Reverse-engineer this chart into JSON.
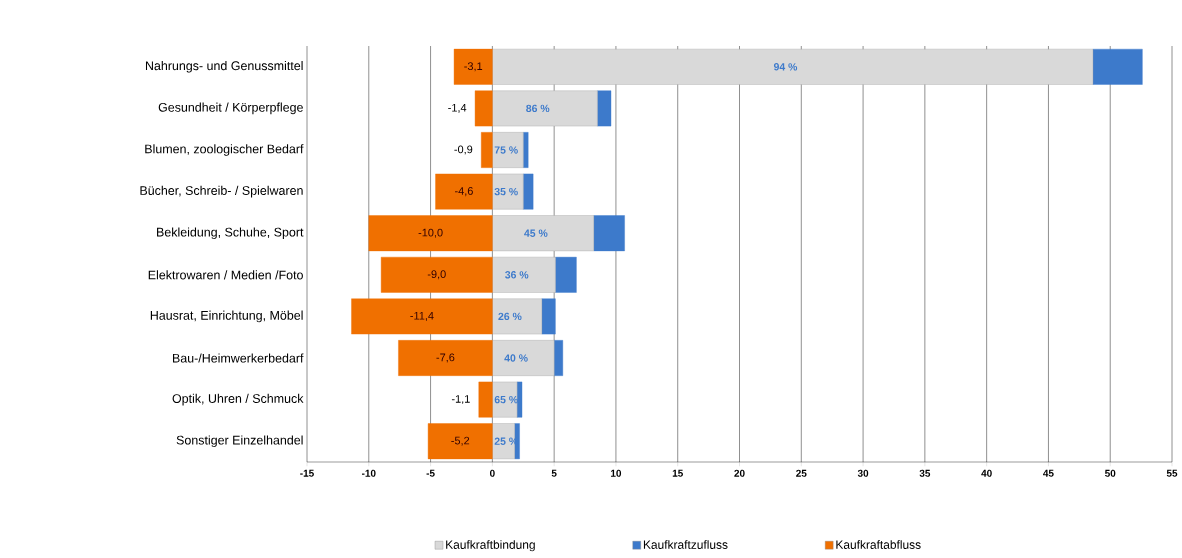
{
  "chart_data": {
    "type": "bar",
    "orientation": "horizontal",
    "stacked": true,
    "categories": [
      "Nahrungs- und Genussmittel",
      "Gesundheit / Körperpflege",
      "Blumen, zoologischer Bedarf",
      "Bücher, Schreib- / Spielwaren",
      "Bekleidung, Schuhe, Sport",
      "Elektrowaren / Medien /Foto",
      "Hausrat, Einrichtung, Möbel",
      "Bau-/Heimwerkerbedarf",
      "Optik, Uhren / Schmuck",
      "Sonstiger Einzelhandel"
    ],
    "series": [
      {
        "name": "Kaufkraftbindung",
        "color": "#d9d9d9",
        "values": [
          48.6,
          8.5,
          2.5,
          2.5,
          8.2,
          5.1,
          4.0,
          5.0,
          2.0,
          1.8
        ]
      },
      {
        "name": "Kaufkraftzufluss",
        "color": "#3d7acb",
        "values": [
          4.0,
          1.1,
          0.4,
          0.8,
          2.5,
          1.7,
          1.1,
          0.7,
          0.4,
          0.4
        ]
      },
      {
        "name": "Kaufkraftabfluss",
        "color": "#f07000",
        "values": [
          -3.1,
          -1.4,
          -0.9,
          -4.6,
          -10.0,
          -9.0,
          -11.4,
          -7.6,
          -1.1,
          -5.2
        ],
        "value_labels": [
          "-3,1",
          "-1,4",
          "-0,9",
          "-4,6",
          "-10,0",
          "-9,0",
          "-11,4",
          "-7,6",
          "-1,1",
          "-5,2"
        ]
      }
    ],
    "annotations": [
      "94 %",
      "86 %",
      "75 %",
      "35 %",
      "45 %",
      "36 %",
      "26 %",
      "40 %",
      "65 %",
      "25 %"
    ],
    "xlim": [
      -15,
      55
    ],
    "xticks": [
      -15,
      -10,
      -5,
      0,
      5,
      10,
      15,
      20,
      25,
      30,
      35,
      40,
      45,
      50,
      55
    ],
    "grid": "x",
    "legend": "bottom"
  }
}
